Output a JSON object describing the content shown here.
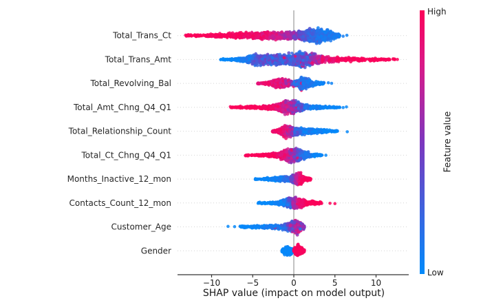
{
  "chart_data": {
    "type": "scatter",
    "variant": "shap_beeswarm_summary",
    "title": "",
    "xlabel": "SHAP value (impact on model output)",
    "x_ticks": {
      "values": [
        -10,
        -5,
        0,
        5,
        10
      ],
      "labels": [
        "−10",
        "−5",
        "0",
        "5",
        "10"
      ]
    },
    "xlim": [
      -14.1,
      14.0
    ],
    "grid": "dotted horizontal guide per feature row",
    "legend": {
      "position": "right-colorbar",
      "high_label": "High",
      "low_label": "Low",
      "title": "Feature value"
    },
    "colors": {
      "value_high": "#fb0259",
      "value_mid": "#7d37be",
      "value_low": "#028bfb",
      "zero_line": "#999999",
      "grid": "#d4d4d4",
      "axis": "#333333",
      "text": "#262626"
    },
    "segment_format": [
      "x_from",
      "x_to",
      "half_thickness_px_from",
      "half_thickness_px_to",
      "n_points",
      "feature_value_t_from(0=low/blue,1=high/red)",
      "feature_value_t_to",
      "color_noise",
      "flip_probability"
    ],
    "features": [
      {
        "name": "Total_Trans_Ct",
        "shap_range": [
          -13.3,
          6.5
        ],
        "pattern": "high(red) values push strongly negative down to -13; low(blue) values cluster +1..+5.5",
        "segments": [
          [
            -13.3,
            -10.5,
            1.2,
            2.5,
            50,
            1,
            1,
            0.03,
            0
          ],
          [
            -10.5,
            -7,
            2.5,
            5,
            140,
            1,
            0.97,
            0.05,
            0
          ],
          [
            -7,
            -4,
            5,
            7,
            220,
            0.95,
            0.88,
            0.08,
            0
          ],
          [
            -4,
            -1.2,
            7,
            8,
            260,
            0.88,
            0.72,
            0.12,
            0
          ],
          [
            -1.2,
            0.6,
            8,
            8,
            180,
            0.7,
            0.45,
            0.15,
            0
          ],
          [
            0.6,
            2.2,
            8,
            12,
            260,
            0.38,
            0.2,
            0.12,
            0.02
          ],
          [
            2.2,
            3.4,
            12,
            14,
            260,
            0.2,
            0.12,
            0.1,
            0.01
          ],
          [
            3.4,
            4.5,
            14,
            8,
            180,
            0.12,
            0.1,
            0.08,
            0
          ],
          [
            4.5,
            5.6,
            8,
            2.5,
            70,
            0.1,
            0.08,
            0.05,
            0
          ]
        ],
        "outliers": [
          [
            6.0,
            0.08
          ],
          [
            6.45,
            0.05
          ]
        ]
      },
      {
        "name": "Total_Trans_Amt",
        "shap_range": [
          -8.9,
          12.6
        ],
        "pattern": "low(blue) values negative to -9; high(red) values positive tail to +12.6; red speckles mixed near 0..+2",
        "segments": [
          [
            -8.9,
            -7.2,
            1.2,
            2,
            35,
            0.02,
            0.02,
            0.02,
            0
          ],
          [
            -7.2,
            -5.8,
            2,
            5,
            90,
            0.02,
            0.1,
            0.06,
            0
          ],
          [
            -5.8,
            -4.6,
            5,
            11,
            160,
            0.1,
            0.3,
            0.15,
            0
          ],
          [
            -4.6,
            -3.2,
            11,
            9,
            180,
            0.33,
            0.3,
            0.2,
            0
          ],
          [
            -3.2,
            -1.6,
            9,
            11,
            220,
            0.3,
            0.3,
            0.2,
            0.01
          ],
          [
            -1.6,
            -0.2,
            11,
            10,
            200,
            0.28,
            0.25,
            0.18,
            0.02
          ],
          [
            -0.2,
            1.0,
            10,
            14,
            260,
            0.25,
            0.27,
            0.15,
            0.06
          ],
          [
            1.0,
            2.2,
            14,
            11,
            220,
            0.3,
            0.42,
            0.25,
            0.08
          ],
          [
            2.2,
            3.4,
            11,
            6,
            140,
            0.5,
            0.72,
            0.25,
            0.03
          ],
          [
            3.4,
            5.5,
            6,
            4,
            130,
            0.85,
            0.95,
            0.1,
            0.01
          ],
          [
            5.5,
            8.5,
            4,
            3,
            90,
            0.97,
            1,
            0.04,
            0
          ],
          [
            8.5,
            12.3,
            3,
            1.5,
            60,
            1,
            1,
            0.02,
            0
          ]
        ],
        "outliers": [
          [
            12.6,
            1
          ]
        ]
      },
      {
        "name": "Total_Revolving_Bal",
        "shap_range": [
          -4.4,
          4.6
        ],
        "pattern": "high(red/magenta) blob -3..0; low(blue) blob 0..+2.3 with thin blue tail to +4.6",
        "segments": [
          [
            -4.4,
            -3.2,
            1.2,
            2.5,
            40,
            0.9,
            0.9,
            0.06,
            0
          ],
          [
            -3.2,
            -2.2,
            2.5,
            7,
            110,
            0.9,
            0.87,
            0.1,
            0
          ],
          [
            -2.2,
            -1.3,
            7,
            10,
            150,
            0.87,
            0.8,
            0.15,
            0
          ],
          [
            -1.3,
            -0.4,
            10,
            5,
            110,
            0.8,
            0.68,
            0.2,
            0.02
          ],
          [
            -0.4,
            0.3,
            5,
            6,
            70,
            0.6,
            0.35,
            0.3,
            0.08
          ],
          [
            0.3,
            1.1,
            6,
            13,
            170,
            0.18,
            0.1,
            0.12,
            0.05
          ],
          [
            1.1,
            2.2,
            13,
            5,
            140,
            0.1,
            0.12,
            0.1,
            0.01
          ],
          [
            2.2,
            3.7,
            5,
            2,
            60,
            0.1,
            0.05,
            0.05,
            0
          ]
        ],
        "outliers": [
          [
            4.2,
            0.05
          ],
          [
            4.6,
            0.05
          ]
        ]
      },
      {
        "name": "Total_Amt_Chng_Q4_Q1",
        "shap_range": [
          -7.8,
          6.4
        ],
        "pattern": "thin red tail to -7.8; dense purple blob -2..+1; blue tail to +6.4",
        "segments": [
          [
            -7.8,
            -6,
            1.2,
            2,
            35,
            1,
            1,
            0.02,
            0
          ],
          [
            -6,
            -4,
            2,
            3,
            80,
            1,
            1,
            0.03,
            0
          ],
          [
            -4,
            -2.2,
            3,
            5,
            120,
            0.98,
            0.93,
            0.06,
            0
          ],
          [
            -2.2,
            -1,
            5,
            13,
            220,
            0.92,
            0.75,
            0.12,
            0
          ],
          [
            -1,
            0.3,
            13,
            11,
            260,
            0.75,
            0.5,
            0.2,
            0.04
          ],
          [
            0.3,
            1.3,
            11,
            5,
            140,
            0.4,
            0.2,
            0.25,
            0.08
          ],
          [
            1.3,
            3.2,
            5,
            3,
            110,
            0.12,
            0.05,
            0.08,
            0
          ],
          [
            3.2,
            5.6,
            3,
            1.5,
            50,
            0.05,
            0.02,
            0.03,
            0
          ]
        ],
        "outliers": [
          [
            6.0,
            0.02
          ],
          [
            6.4,
            0.02
          ]
        ]
      },
      {
        "name": "Total_Relationship_Count",
        "shap_range": [
          -2.6,
          6.5
        ],
        "pattern": "high(red) diamond blob -2..0; low(blue) tapering tail 0..+5.4",
        "segments": [
          [
            -2.6,
            -1.7,
            1.5,
            5,
            70,
            0.95,
            0.9,
            0.08,
            0
          ],
          [
            -1.7,
            -0.8,
            5,
            13,
            180,
            0.9,
            0.8,
            0.12,
            0
          ],
          [
            -0.8,
            0.1,
            13,
            8,
            170,
            0.78,
            0.5,
            0.2,
            0.02
          ],
          [
            0.1,
            1.1,
            8,
            6,
            140,
            0.3,
            0.15,
            0.15,
            0.01
          ],
          [
            1.1,
            2.6,
            6,
            4.5,
            150,
            0.1,
            0.06,
            0.08,
            0
          ],
          [
            2.6,
            4.2,
            4.5,
            2.5,
            80,
            0.05,
            0.02,
            0.04,
            0
          ],
          [
            4.2,
            5.4,
            2.5,
            1.2,
            30,
            0.02,
            0.02,
            0.02,
            0
          ]
        ],
        "outliers": [
          [
            6.5,
            0.02
          ]
        ]
      },
      {
        "name": "Total_Ct_Chng_Q4_Q1",
        "shap_range": [
          -5.9,
          3.9
        ],
        "pattern": "red tail to -5.9; magenta/purple blob -1.8..+0.4; blue blob & tail to +3.9",
        "segments": [
          [
            -5.9,
            -4.6,
            1.2,
            1.8,
            25,
            1,
            1,
            0.02,
            0
          ],
          [
            -4.6,
            -3,
            1.8,
            3,
            70,
            1,
            0.98,
            0.03,
            0
          ],
          [
            -3,
            -1.8,
            3,
            5,
            110,
            0.97,
            0.92,
            0.06,
            0
          ],
          [
            -1.8,
            -0.6,
            5,
            13,
            220,
            0.9,
            0.75,
            0.12,
            0
          ],
          [
            -0.6,
            0.4,
            13,
            12,
            220,
            0.72,
            0.45,
            0.2,
            0.02
          ],
          [
            0.4,
            1.3,
            12,
            8,
            160,
            0.35,
            0.15,
            0.15,
            0.02
          ],
          [
            1.3,
            2.2,
            8,
            3.5,
            90,
            0.12,
            0.06,
            0.08,
            0
          ],
          [
            2.2,
            3.5,
            3.5,
            1.5,
            45,
            0.05,
            0.02,
            0.03,
            0
          ]
        ],
        "outliers": [
          [
            3.9,
            0.02
          ]
        ]
      },
      {
        "name": "Months_Inactive_12_mon",
        "shap_range": [
          -4.7,
          2.1
        ],
        "pattern": "low(blue) tail to -4.7; high(red/magenta) diamond blob 0..+1.2, red tail to +2.1",
        "segments": [
          [
            -4.7,
            -3.5,
            1.2,
            1.8,
            25,
            0.02,
            0.02,
            0.02,
            0
          ],
          [
            -3.5,
            -2.4,
            1.8,
            4,
            70,
            0.02,
            0.05,
            0.04,
            0
          ],
          [
            -2.4,
            -1.2,
            4,
            5,
            120,
            0.05,
            0.1,
            0.08,
            0
          ],
          [
            -1.2,
            -0.4,
            5,
            5,
            100,
            0.1,
            0.2,
            0.12,
            0.01
          ],
          [
            -0.4,
            0.2,
            5,
            12,
            150,
            0.3,
            0.6,
            0.2,
            0.02
          ],
          [
            0.2,
            0.7,
            12,
            13,
            150,
            0.65,
            0.85,
            0.15,
            0.01
          ],
          [
            0.7,
            1.2,
            13,
            5,
            100,
            0.88,
            0.95,
            0.1,
            0
          ],
          [
            1.2,
            2.1,
            5,
            1.8,
            50,
            0.98,
            1,
            0.03,
            0
          ]
        ],
        "outliers": []
      },
      {
        "name": "Contacts_Count_12_mon",
        "shap_range": [
          -4.4,
          5.0
        ],
        "pattern": "low(blue) tail/blob to -4.4; high(red) tail 0..+3.4 plus isolated red dots +4.4,+5.0",
        "segments": [
          [
            -4.4,
            -3,
            1.2,
            1.6,
            22,
            0.02,
            0.02,
            0.02,
            0
          ],
          [
            -3,
            -1.8,
            1.6,
            3.5,
            60,
            0.02,
            0.05,
            0.04,
            0
          ],
          [
            -1.8,
            -0.8,
            3.5,
            8,
            120,
            0.05,
            0.15,
            0.1,
            0
          ],
          [
            -0.8,
            -0.1,
            8,
            10,
            130,
            0.2,
            0.5,
            0.2,
            0.02
          ],
          [
            -0.1,
            0.6,
            10,
            10,
            140,
            0.6,
            0.85,
            0.15,
            0.01
          ],
          [
            0.6,
            1.5,
            10,
            4.5,
            110,
            0.9,
            0.98,
            0.08,
            0
          ],
          [
            1.5,
            3.4,
            4.5,
            1.8,
            70,
            1,
            1,
            0.02,
            0
          ]
        ],
        "outliers": [
          [
            4.4,
            1
          ],
          [
            5.0,
            1
          ]
        ]
      },
      {
        "name": "Customer_Age",
        "shap_range": [
          -8.0,
          1.3
        ],
        "pattern": "low(blue) thin tail to -8; mixed purple diamond blob around 0..+1",
        "segments": [
          [
            -6.6,
            -5.4,
            1.5,
            2,
            30,
            0.02,
            0.02,
            0.02,
            0
          ],
          [
            -5.4,
            -3.6,
            2,
            3,
            70,
            0.02,
            0.05,
            0.04,
            0.01
          ],
          [
            -3.6,
            -1.6,
            3,
            4,
            100,
            0.05,
            0.12,
            0.08,
            0.02
          ],
          [
            -1.6,
            -0.5,
            4,
            9,
            130,
            0.15,
            0.4,
            0.2,
            0.02
          ],
          [
            -0.5,
            0.5,
            9,
            13,
            200,
            0.45,
            0.65,
            0.28,
            0.03
          ],
          [
            0.5,
            1.3,
            13,
            3,
            110,
            0.6,
            0.5,
            0.28,
            0.03
          ]
        ],
        "outliers": [
          [
            -8.0,
            0.02
          ],
          [
            -7.2,
            0.02
          ]
        ]
      },
      {
        "name": "Gender",
        "shap_range": [
          -1.45,
          1.35
        ],
        "pattern": "binary: low(blue) diamond -1.45..-0.1; high(red) diamond +0..+1.35",
        "segments": [
          [
            -1.45,
            -0.75,
            2,
            12,
            110,
            0.02,
            0.02,
            0.02,
            0
          ],
          [
            -0.75,
            -0.1,
            12,
            4,
            120,
            0.02,
            0.02,
            0.02,
            0
          ],
          [
            0.0,
            0.5,
            4,
            12,
            110,
            0.98,
            0.98,
            0.02,
            0
          ],
          [
            0.5,
            1.3,
            12,
            2,
            130,
            0.98,
            0.98,
            0.02,
            0
          ]
        ],
        "outliers": []
      }
    ]
  }
}
